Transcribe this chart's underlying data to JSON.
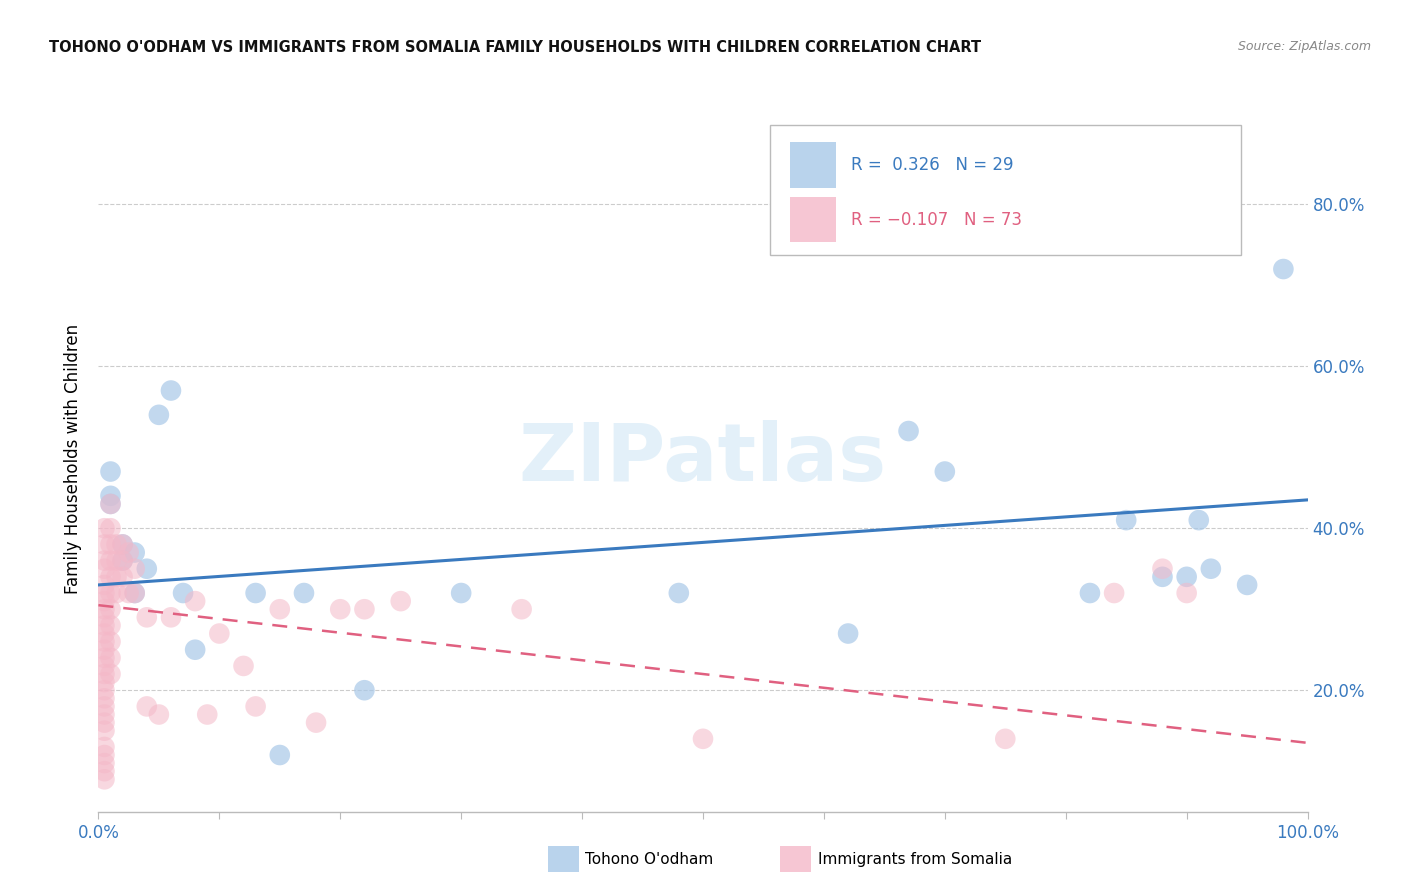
{
  "title": "TOHONO O'ODHAM VS IMMIGRANTS FROM SOMALIA FAMILY HOUSEHOLDS WITH CHILDREN CORRELATION CHART",
  "source": "Source: ZipAtlas.com",
  "ylabel": "Family Households with Children",
  "xlim": [
    0.0,
    1.0
  ],
  "ylim": [
    0.05,
    0.92
  ],
  "yticks": [
    0.2,
    0.4,
    0.6,
    0.8
  ],
  "ytick_labels": [
    "20.0%",
    "40.0%",
    "60.0%",
    "80.0%"
  ],
  "watermark": "ZIPatlas",
  "blue_color": "#a8c8e8",
  "pink_color": "#f4b8c8",
  "blue_line_color": "#3a7abf",
  "pink_line_color": "#e06080",
  "blue_scatter": [
    [
      0.01,
      0.44
    ],
    [
      0.01,
      0.43
    ],
    [
      0.01,
      0.47
    ],
    [
      0.02,
      0.38
    ],
    [
      0.02,
      0.36
    ],
    [
      0.03,
      0.37
    ],
    [
      0.03,
      0.32
    ],
    [
      0.04,
      0.35
    ],
    [
      0.05,
      0.54
    ],
    [
      0.06,
      0.57
    ],
    [
      0.07,
      0.32
    ],
    [
      0.08,
      0.25
    ],
    [
      0.13,
      0.32
    ],
    [
      0.15,
      0.12
    ],
    [
      0.17,
      0.32
    ],
    [
      0.22,
      0.2
    ],
    [
      0.3,
      0.32
    ],
    [
      0.48,
      0.32
    ],
    [
      0.62,
      0.27
    ],
    [
      0.67,
      0.52
    ],
    [
      0.7,
      0.47
    ],
    [
      0.82,
      0.32
    ],
    [
      0.85,
      0.41
    ],
    [
      0.88,
      0.34
    ],
    [
      0.9,
      0.34
    ],
    [
      0.91,
      0.41
    ],
    [
      0.92,
      0.35
    ],
    [
      0.95,
      0.33
    ],
    [
      0.98,
      0.72
    ]
  ],
  "pink_scatter": [
    [
      0.005,
      0.4
    ],
    [
      0.005,
      0.38
    ],
    [
      0.005,
      0.36
    ],
    [
      0.005,
      0.35
    ],
    [
      0.005,
      0.33
    ],
    [
      0.005,
      0.32
    ],
    [
      0.005,
      0.31
    ],
    [
      0.005,
      0.3
    ],
    [
      0.005,
      0.29
    ],
    [
      0.005,
      0.28
    ],
    [
      0.005,
      0.27
    ],
    [
      0.005,
      0.26
    ],
    [
      0.005,
      0.25
    ],
    [
      0.005,
      0.24
    ],
    [
      0.005,
      0.23
    ],
    [
      0.005,
      0.22
    ],
    [
      0.005,
      0.21
    ],
    [
      0.005,
      0.2
    ],
    [
      0.005,
      0.19
    ],
    [
      0.005,
      0.18
    ],
    [
      0.005,
      0.17
    ],
    [
      0.005,
      0.16
    ],
    [
      0.005,
      0.15
    ],
    [
      0.005,
      0.13
    ],
    [
      0.005,
      0.12
    ],
    [
      0.005,
      0.11
    ],
    [
      0.005,
      0.1
    ],
    [
      0.005,
      0.09
    ],
    [
      0.01,
      0.4
    ],
    [
      0.01,
      0.38
    ],
    [
      0.01,
      0.36
    ],
    [
      0.01,
      0.34
    ],
    [
      0.01,
      0.32
    ],
    [
      0.01,
      0.3
    ],
    [
      0.01,
      0.28
    ],
    [
      0.01,
      0.26
    ],
    [
      0.01,
      0.24
    ],
    [
      0.01,
      0.22
    ],
    [
      0.01,
      0.43
    ],
    [
      0.015,
      0.38
    ],
    [
      0.015,
      0.36
    ],
    [
      0.015,
      0.34
    ],
    [
      0.015,
      0.32
    ],
    [
      0.02,
      0.38
    ],
    [
      0.02,
      0.36
    ],
    [
      0.02,
      0.34
    ],
    [
      0.025,
      0.37
    ],
    [
      0.025,
      0.32
    ],
    [
      0.03,
      0.35
    ],
    [
      0.03,
      0.32
    ],
    [
      0.04,
      0.29
    ],
    [
      0.04,
      0.18
    ],
    [
      0.05,
      0.17
    ],
    [
      0.06,
      0.29
    ],
    [
      0.08,
      0.31
    ],
    [
      0.09,
      0.17
    ],
    [
      0.1,
      0.27
    ],
    [
      0.12,
      0.23
    ],
    [
      0.13,
      0.18
    ],
    [
      0.15,
      0.3
    ],
    [
      0.18,
      0.16
    ],
    [
      0.2,
      0.3
    ],
    [
      0.22,
      0.3
    ],
    [
      0.25,
      0.31
    ],
    [
      0.35,
      0.3
    ],
    [
      0.5,
      0.14
    ],
    [
      0.75,
      0.14
    ],
    [
      0.84,
      0.32
    ],
    [
      0.88,
      0.35
    ],
    [
      0.9,
      0.32
    ]
  ],
  "blue_trendline": [
    [
      0.0,
      0.33
    ],
    [
      1.0,
      0.435
    ]
  ],
  "pink_trendline": [
    [
      0.0,
      0.305
    ],
    [
      1.0,
      0.135
    ]
  ]
}
